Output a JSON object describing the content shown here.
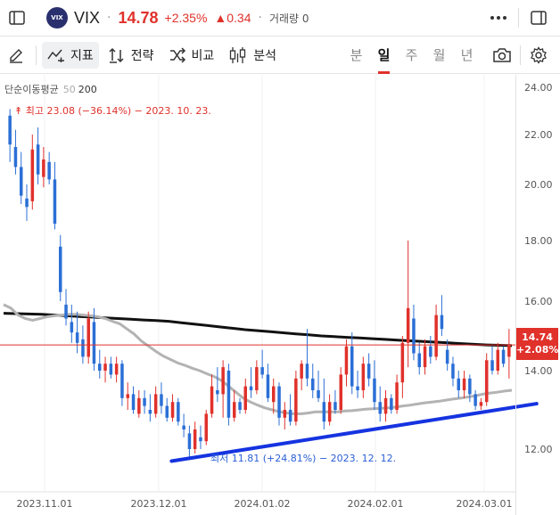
{
  "header": {
    "logo_text": "VIX",
    "symbol": "VIX",
    "price": "14.78",
    "change_pct": "+2.35%",
    "change_abs": "▲0.34",
    "volume_label": "거래량",
    "volume_value": "0"
  },
  "toolbar": {
    "indicators": "지표",
    "strategy": "전략",
    "compare": "비교",
    "analysis": "분석",
    "periods": [
      "분",
      "일",
      "주",
      "월",
      "년"
    ],
    "selected_period": "일"
  },
  "legend": {
    "label": "단순이동평균",
    "ma_short": "50",
    "ma_long": "200"
  },
  "annotations": {
    "high": "최고 23.08 (−36.14%) − 2023. 10. 23.",
    "low": "최저 11.81 (+24.81%) − 2023. 12. 12."
  },
  "price_tag": {
    "price": "14.74",
    "change": "+2.08%"
  },
  "colors": {
    "up": "#e0312b",
    "down": "#2b6fd6",
    "ma50": "#b3b3b3",
    "ma200": "#111111",
    "trendline": "#1533e0"
  },
  "chart_data": {
    "type": "candlestick",
    "y_ticks": [
      "24.00",
      "22.00",
      "20.00",
      "18.00",
      "16.00",
      "14.00",
      "12.00"
    ],
    "x_ticks": [
      "2023.11.01",
      "2023.12.01",
      "2024.01.02",
      "2024.02.01",
      "2024.03.01"
    ],
    "ylim": [
      11.5,
      24.2
    ],
    "last_price": 14.74,
    "candles": [
      {
        "o": 22.8,
        "h": 23.08,
        "l": 20.9,
        "c": 21.6
      },
      {
        "o": 21.5,
        "h": 22.2,
        "l": 20.4,
        "c": 20.7
      },
      {
        "o": 20.7,
        "h": 21.3,
        "l": 19.3,
        "c": 19.6
      },
      {
        "o": 19.5,
        "h": 20.0,
        "l": 18.7,
        "c": 19.2
      },
      {
        "o": 19.4,
        "h": 22.0,
        "l": 19.1,
        "c": 21.4
      },
      {
        "o": 21.6,
        "h": 22.3,
        "l": 20.0,
        "c": 20.4
      },
      {
        "o": 20.3,
        "h": 21.5,
        "l": 19.9,
        "c": 21.0
      },
      {
        "o": 20.9,
        "h": 21.3,
        "l": 20.0,
        "c": 20.2
      },
      {
        "o": 20.2,
        "h": 20.9,
        "l": 18.4,
        "c": 18.6
      },
      {
        "o": 17.8,
        "h": 18.2,
        "l": 16.0,
        "c": 16.3
      },
      {
        "o": 15.9,
        "h": 16.4,
        "l": 15.3,
        "c": 15.5
      },
      {
        "o": 15.4,
        "h": 15.9,
        "l": 14.8,
        "c": 15.1
      },
      {
        "o": 15.1,
        "h": 15.7,
        "l": 14.5,
        "c": 14.8
      },
      {
        "o": 14.9,
        "h": 15.3,
        "l": 14.2,
        "c": 14.4
      },
      {
        "o": 14.4,
        "h": 15.7,
        "l": 14.2,
        "c": 15.5
      },
      {
        "o": 15.4,
        "h": 15.8,
        "l": 14.0,
        "c": 14.2
      },
      {
        "o": 14.2,
        "h": 14.6,
        "l": 13.8,
        "c": 14.0
      },
      {
        "o": 14.0,
        "h": 14.4,
        "l": 13.7,
        "c": 14.2
      },
      {
        "o": 14.2,
        "h": 14.4,
        "l": 13.8,
        "c": 13.9
      },
      {
        "o": 13.9,
        "h": 14.4,
        "l": 13.7,
        "c": 14.2
      },
      {
        "o": 14.2,
        "h": 14.3,
        "l": 13.1,
        "c": 13.3
      },
      {
        "o": 13.3,
        "h": 13.7,
        "l": 13.0,
        "c": 13.4
      },
      {
        "o": 13.4,
        "h": 13.6,
        "l": 12.9,
        "c": 13.0
      },
      {
        "o": 12.9,
        "h": 13.5,
        "l": 12.8,
        "c": 13.3
      },
      {
        "o": 13.3,
        "h": 13.5,
        "l": 12.9,
        "c": 13.1
      },
      {
        "o": 13.0,
        "h": 13.4,
        "l": 12.7,
        "c": 12.9
      },
      {
        "o": 12.9,
        "h": 13.6,
        "l": 12.8,
        "c": 13.4
      },
      {
        "o": 13.4,
        "h": 13.7,
        "l": 12.9,
        "c": 13.1
      },
      {
        "o": 13.1,
        "h": 13.3,
        "l": 12.7,
        "c": 12.8
      },
      {
        "o": 12.8,
        "h": 13.4,
        "l": 12.7,
        "c": 13.2
      },
      {
        "o": 13.2,
        "h": 13.3,
        "l": 12.6,
        "c": 12.7
      },
      {
        "o": 12.6,
        "h": 12.9,
        "l": 12.3,
        "c": 12.5
      },
      {
        "o": 12.4,
        "h": 12.6,
        "l": 11.81,
        "c": 12.0
      },
      {
        "o": 12.0,
        "h": 12.7,
        "l": 11.9,
        "c": 12.5
      },
      {
        "o": 12.3,
        "h": 12.6,
        "l": 12.0,
        "c": 12.2
      },
      {
        "o": 12.2,
        "h": 13.0,
        "l": 12.1,
        "c": 12.9
      },
      {
        "o": 12.9,
        "h": 13.9,
        "l": 12.8,
        "c": 13.6
      },
      {
        "o": 13.5,
        "h": 14.1,
        "l": 13.2,
        "c": 13.4
      },
      {
        "o": 13.4,
        "h": 14.3,
        "l": 12.8,
        "c": 14.1
      },
      {
        "o": 14.0,
        "h": 14.2,
        "l": 12.6,
        "c": 12.8
      },
      {
        "o": 12.8,
        "h": 13.5,
        "l": 12.7,
        "c": 13.2
      },
      {
        "o": 13.2,
        "h": 13.3,
        "l": 12.9,
        "c": 13.0
      },
      {
        "o": 13.0,
        "h": 13.8,
        "l": 12.9,
        "c": 13.6
      },
      {
        "o": 13.6,
        "h": 14.1,
        "l": 13.3,
        "c": 13.5
      },
      {
        "o": 13.5,
        "h": 14.3,
        "l": 13.4,
        "c": 14.1
      },
      {
        "o": 14.1,
        "h": 14.6,
        "l": 13.8,
        "c": 13.9
      },
      {
        "o": 13.9,
        "h": 14.2,
        "l": 13.2,
        "c": 13.3
      },
      {
        "o": 13.2,
        "h": 13.8,
        "l": 12.9,
        "c": 13.6
      },
      {
        "o": 13.6,
        "h": 13.7,
        "l": 12.6,
        "c": 12.8
      },
      {
        "o": 12.8,
        "h": 13.2,
        "l": 12.5,
        "c": 13.0
      },
      {
        "o": 13.0,
        "h": 13.4,
        "l": 12.6,
        "c": 12.7
      },
      {
        "o": 12.7,
        "h": 14.0,
        "l": 12.6,
        "c": 13.8
      },
      {
        "o": 13.8,
        "h": 14.3,
        "l": 13.5,
        "c": 14.2
      },
      {
        "o": 14.2,
        "h": 15.2,
        "l": 13.6,
        "c": 13.8
      },
      {
        "o": 13.8,
        "h": 14.2,
        "l": 13.3,
        "c": 13.5
      },
      {
        "o": 13.5,
        "h": 14.0,
        "l": 13.2,
        "c": 13.3
      },
      {
        "o": 13.2,
        "h": 13.8,
        "l": 12.5,
        "c": 12.7
      },
      {
        "o": 12.7,
        "h": 13.4,
        "l": 12.6,
        "c": 13.2
      },
      {
        "o": 13.2,
        "h": 13.5,
        "l": 12.9,
        "c": 13.0
      },
      {
        "o": 13.0,
        "h": 14.1,
        "l": 12.9,
        "c": 13.9
      },
      {
        "o": 13.9,
        "h": 14.9,
        "l": 13.6,
        "c": 14.7
      },
      {
        "o": 14.7,
        "h": 15.1,
        "l": 13.4,
        "c": 13.6
      },
      {
        "o": 13.6,
        "h": 14.0,
        "l": 13.3,
        "c": 13.5
      },
      {
        "o": 13.5,
        "h": 14.4,
        "l": 13.3,
        "c": 14.2
      },
      {
        "o": 14.2,
        "h": 14.5,
        "l": 13.6,
        "c": 13.8
      },
      {
        "o": 13.8,
        "h": 14.3,
        "l": 13.0,
        "c": 13.2
      },
      {
        "o": 13.2,
        "h": 13.6,
        "l": 12.7,
        "c": 12.9
      },
      {
        "o": 12.9,
        "h": 13.5,
        "l": 12.7,
        "c": 13.3
      },
      {
        "o": 13.3,
        "h": 13.4,
        "l": 12.9,
        "c": 13.0
      },
      {
        "o": 13.0,
        "h": 13.9,
        "l": 12.9,
        "c": 13.7
      },
      {
        "o": 13.7,
        "h": 15.0,
        "l": 13.3,
        "c": 14.8
      },
      {
        "o": 14.8,
        "h": 18.0,
        "l": 14.1,
        "c": 15.8
      },
      {
        "o": 15.5,
        "h": 15.9,
        "l": 14.3,
        "c": 14.5
      },
      {
        "o": 14.5,
        "h": 14.8,
        "l": 13.9,
        "c": 14.1
      },
      {
        "o": 14.1,
        "h": 14.9,
        "l": 13.9,
        "c": 14.7
      },
      {
        "o": 14.7,
        "h": 15.0,
        "l": 14.2,
        "c": 14.4
      },
      {
        "o": 14.4,
        "h": 15.9,
        "l": 14.3,
        "c": 15.6
      },
      {
        "o": 15.6,
        "h": 16.2,
        "l": 15.0,
        "c": 15.2
      },
      {
        "o": 14.6,
        "h": 14.9,
        "l": 14.0,
        "c": 14.2
      },
      {
        "o": 14.2,
        "h": 14.4,
        "l": 13.6,
        "c": 13.8
      },
      {
        "o": 13.8,
        "h": 14.0,
        "l": 13.3,
        "c": 13.5
      },
      {
        "o": 13.5,
        "h": 14.0,
        "l": 13.3,
        "c": 13.8
      },
      {
        "o": 13.8,
        "h": 13.9,
        "l": 13.2,
        "c": 13.4
      },
      {
        "o": 13.4,
        "h": 13.5,
        "l": 13.0,
        "c": 13.1
      },
      {
        "o": 13.1,
        "h": 13.3,
        "l": 13.0,
        "c": 13.2
      },
      {
        "o": 13.2,
        "h": 14.5,
        "l": 13.1,
        "c": 14.3
      },
      {
        "o": 14.3,
        "h": 14.7,
        "l": 13.9,
        "c": 14.0
      },
      {
        "o": 14.0,
        "h": 14.8,
        "l": 13.9,
        "c": 14.6
      },
      {
        "o": 14.6,
        "h": 14.7,
        "l": 14.1,
        "c": 14.2
      },
      {
        "o": 14.4,
        "h": 15.2,
        "l": 13.8,
        "c": 14.74
      }
    ],
    "ma50": [
      15.9,
      15.8,
      15.6,
      15.5,
      15.45,
      15.5,
      15.55,
      15.58,
      15.6,
      15.62,
      15.62,
      15.6,
      15.58,
      15.55,
      15.5,
      15.42,
      15.35,
      15.2,
      15.05,
      14.85,
      14.7,
      14.55,
      14.42,
      14.32,
      14.22,
      14.15,
      14.07,
      14.0,
      13.92,
      13.85,
      13.75,
      13.6,
      13.45,
      13.3,
      13.2,
      13.12,
      13.05,
      13.0,
      12.95,
      12.92,
      12.9,
      12.9,
      12.92,
      12.95,
      12.95,
      12.95,
      12.95,
      12.97,
      12.98,
      13.0,
      13.02,
      13.03,
      13.04,
      13.05,
      13.07,
      13.1,
      13.12,
      13.15,
      13.18,
      13.2,
      13.22,
      13.25,
      13.28,
      13.3,
      13.33,
      13.36,
      13.4,
      13.43,
      13.45,
      13.48,
      13.5
    ],
    "ma200": [
      15.65,
      15.64,
      15.63,
      15.62,
      15.6,
      15.58,
      15.56,
      15.54,
      15.52,
      15.5,
      15.48,
      15.46,
      15.44,
      15.42,
      15.38,
      15.34,
      15.3,
      15.26,
      15.22,
      15.18,
      15.15,
      15.12,
      15.09,
      15.06,
      15.03,
      15.0,
      14.98,
      14.96,
      14.94,
      14.92,
      14.9,
      14.88,
      14.86,
      14.84,
      14.82,
      14.8,
      14.78,
      14.76,
      14.74,
      14.73,
      14.72
    ],
    "trendline": [
      [
        32,
        11.81
      ],
      [
        92,
        13.09
      ]
    ]
  }
}
